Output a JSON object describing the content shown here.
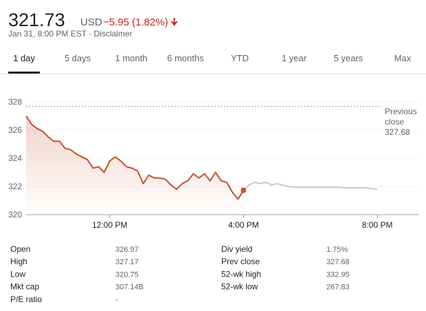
{
  "header": {
    "price": "321.73",
    "currency": "USD",
    "change": "−5.95 (1.82%)",
    "subtitle": "Jan 31, 8:00 PM EST · Disclaimer"
  },
  "tabs": {
    "items": [
      "1 day",
      "5 days",
      "1 month",
      "6 months",
      "YTD",
      "1 year",
      "5 years",
      "Max"
    ],
    "selected": 0
  },
  "chart_data": {
    "type": "line",
    "xlim": [
      570,
      1275
    ],
    "xticks": [
      {
        "value": 720,
        "label": "12:00 PM"
      },
      {
        "value": 960,
        "label": "4:00 PM"
      },
      {
        "value": 1200,
        "label": "8:00 PM"
      }
    ],
    "ylim": [
      320,
      328
    ],
    "yticks": [
      320,
      322,
      324,
      326,
      328
    ],
    "grid": true,
    "previous_close": 327.68,
    "previous_close_label": "Previous close",
    "series": [
      {
        "color": "#c5502d",
        "area": true,
        "x": [
          570,
          580,
          590,
          600,
          610,
          620,
          630,
          640,
          650,
          660,
          670,
          680,
          690,
          700,
          710,
          720,
          730,
          740,
          750,
          760,
          770,
          780,
          790,
          800,
          810,
          820,
          830,
          840,
          850,
          860,
          870,
          880,
          890,
          900,
          910,
          920,
          930,
          940,
          950,
          960
        ],
        "values": [
          327.0,
          326.4,
          326.1,
          325.9,
          325.5,
          325.2,
          325.2,
          324.7,
          324.6,
          324.3,
          324.1,
          323.9,
          323.3,
          323.4,
          323.0,
          323.8,
          324.1,
          323.8,
          323.4,
          323.3,
          323.1,
          322.2,
          322.8,
          322.6,
          322.6,
          322.5,
          322.1,
          321.8,
          322.2,
          322.4,
          322.9,
          322.6,
          322.9,
          322.4,
          323.0,
          322.4,
          322.3,
          321.6,
          321.1,
          321.73
        ]
      },
      {
        "color": "#c8c8c8",
        "area": false,
        "x": [
          960,
          970,
          980,
          990,
          1000,
          1010,
          1020,
          1030,
          1040,
          1050,
          1060,
          1080,
          1100,
          1120,
          1140,
          1160,
          1180,
          1200
        ],
        "values": [
          321.73,
          322.1,
          322.3,
          322.2,
          322.3,
          322.1,
          322.2,
          322.1,
          322.0,
          321.95,
          321.95,
          321.95,
          321.95,
          321.95,
          321.9,
          321.9,
          321.9,
          321.8
        ]
      }
    ]
  },
  "stats": {
    "left": [
      [
        "Open",
        "326.97"
      ],
      [
        "High",
        "327.17"
      ],
      [
        "Low",
        "320.75"
      ],
      [
        "Mkt cap",
        "307.14B"
      ],
      [
        "P/E ratio",
        "-"
      ]
    ],
    "right": [
      [
        "Div yield",
        "1.75%"
      ],
      [
        "Prev close",
        "327.68"
      ],
      [
        "52-wk high",
        "332.95"
      ],
      [
        "52-wk low",
        "267.83"
      ]
    ]
  }
}
